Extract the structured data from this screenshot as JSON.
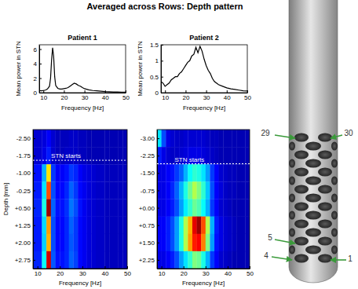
{
  "title": "Averaged across Rows: Depth pattern",
  "chart_data": [
    {
      "type": "line",
      "title": "Patient 1",
      "x_label": "Frequency [Hz]",
      "y_label": "Mean power in STN",
      "x": [
        8,
        9,
        10,
        11,
        12,
        13,
        13.5,
        14,
        14.5,
        15,
        15.5,
        16,
        17,
        18,
        19,
        20,
        21,
        22,
        23,
        24,
        25,
        26,
        27,
        28,
        29,
        30,
        32,
        34,
        36,
        38,
        40,
        42,
        44,
        46,
        48,
        50
      ],
      "series": [
        {
          "color": "#000000",
          "values": [
            0.3,
            0.25,
            0.3,
            0.35,
            0.5,
            0.9,
            2.0,
            4.5,
            6.2,
            5.0,
            2.2,
            1.0,
            0.6,
            0.5,
            0.5,
            0.55,
            0.6,
            0.7,
            0.9,
            1.1,
            1.3,
            1.2,
            1.0,
            0.9,
            0.7,
            0.55,
            0.4,
            0.3,
            0.25,
            0.2,
            0.15,
            0.12,
            0.1,
            0.1,
            0.08,
            0.08
          ]
        }
      ],
      "xlim": [
        8,
        50
      ],
      "xticks": [
        10,
        20,
        30,
        40,
        50
      ],
      "ylim": [
        0,
        6.6
      ],
      "yticks": [
        0,
        2,
        4,
        6
      ]
    },
    {
      "type": "line",
      "title": "Patient 2",
      "x_label": "Frequency [Hz]",
      "y_label": "Mean power in STN",
      "x": [
        8,
        9,
        10,
        11,
        12,
        13,
        14,
        15,
        16,
        17,
        18,
        19,
        20,
        21,
        22,
        23,
        24,
        25,
        26,
        27,
        28,
        29,
        30,
        31,
        32,
        33,
        34,
        35,
        36,
        38,
        40,
        42,
        44,
        46,
        48,
        50
      ],
      "series": [
        {
          "color": "#000000",
          "values": [
            0.35,
            0.3,
            0.2,
            0.25,
            0.3,
            0.4,
            0.45,
            0.5,
            0.5,
            0.6,
            0.65,
            0.75,
            0.85,
            0.95,
            1.0,
            1.15,
            1.2,
            1.42,
            1.25,
            1.45,
            1.3,
            1.05,
            0.85,
            0.7,
            0.6,
            0.45,
            0.35,
            0.3,
            0.25,
            0.2,
            0.15,
            0.12,
            0.1,
            0.08,
            0.06,
            0.05
          ]
        }
      ],
      "xlim": [
        8,
        50
      ],
      "xticks": [
        10,
        20,
        30,
        40,
        50
      ],
      "ylim": [
        0,
        1.5
      ],
      "yticks": [
        0,
        0.5,
        1,
        1.5
      ]
    },
    {
      "type": "heatmap",
      "x_label": "Frequency [Hz]",
      "y_label": "Depth [mm]",
      "x_bins": [
        8,
        10,
        12,
        14,
        16,
        18,
        20,
        22,
        24,
        26,
        28,
        30,
        32,
        34,
        36,
        38,
        40,
        42,
        44,
        46,
        48,
        50
      ],
      "y_bins": [
        -2.875,
        -2.125,
        -1.375,
        -0.625,
        0.125,
        0.875,
        1.625,
        2.375,
        3.125
      ],
      "z": [
        [
          0.08,
          0.08,
          0.09,
          0.12,
          0.08,
          0.06,
          0.06,
          0.06,
          0.07,
          0.07,
          0.06,
          0.06,
          0.05,
          0.05,
          0.05,
          0.05,
          0.05,
          0.05,
          0.05,
          0.05,
          0.05
        ],
        [
          0.08,
          0.08,
          0.1,
          0.15,
          0.08,
          0.06,
          0.06,
          0.07,
          0.07,
          0.07,
          0.06,
          0.06,
          0.05,
          0.05,
          0.05,
          0.05,
          0.05,
          0.05,
          0.05,
          0.05,
          0.05
        ],
        [
          0.14,
          0.14,
          0.3,
          0.65,
          0.18,
          0.12,
          0.12,
          0.14,
          0.18,
          0.16,
          0.12,
          0.1,
          0.09,
          0.08,
          0.07,
          0.07,
          0.06,
          0.06,
          0.06,
          0.06,
          0.06
        ],
        [
          0.15,
          0.15,
          0.35,
          0.8,
          0.2,
          0.13,
          0.13,
          0.16,
          0.22,
          0.18,
          0.13,
          0.11,
          0.09,
          0.08,
          0.07,
          0.07,
          0.06,
          0.06,
          0.06,
          0.06,
          0.06
        ],
        [
          0.16,
          0.16,
          0.4,
          0.97,
          0.22,
          0.14,
          0.14,
          0.17,
          0.24,
          0.2,
          0.14,
          0.11,
          0.09,
          0.08,
          0.07,
          0.07,
          0.06,
          0.06,
          0.06,
          0.06,
          0.06
        ],
        [
          0.15,
          0.15,
          0.34,
          0.72,
          0.2,
          0.13,
          0.13,
          0.16,
          0.22,
          0.18,
          0.13,
          0.11,
          0.09,
          0.08,
          0.07,
          0.07,
          0.06,
          0.06,
          0.06,
          0.06,
          0.06
        ],
        [
          0.15,
          0.15,
          0.33,
          0.7,
          0.2,
          0.13,
          0.13,
          0.16,
          0.21,
          0.18,
          0.13,
          0.11,
          0.09,
          0.08,
          0.07,
          0.07,
          0.06,
          0.06,
          0.06,
          0.06,
          0.06
        ],
        [
          0.16,
          0.16,
          0.38,
          0.92,
          0.21,
          0.14,
          0.14,
          0.16,
          0.22,
          0.19,
          0.13,
          0.11,
          0.09,
          0.08,
          0.07,
          0.07,
          0.06,
          0.06,
          0.06,
          0.06,
          0.06
        ]
      ],
      "color_range": [
        0,
        1
      ],
      "xlim": [
        8,
        50
      ],
      "xticks": [
        10,
        20,
        30,
        40,
        50
      ],
      "ylim": [
        -2.875,
        3.125
      ],
      "yticks": [
        {
          "value": -2.5,
          "label": "-2.50"
        },
        {
          "value": -1.75,
          "label": "-1.75"
        },
        {
          "value": -1.0,
          "label": "-1.00"
        },
        {
          "value": -0.25,
          "label": "-0.25"
        },
        {
          "value": 0.5,
          "label": "+0.50"
        },
        {
          "value": 1.25,
          "label": "+1.25"
        },
        {
          "value": 2.0,
          "label": "+2.00"
        },
        {
          "value": 2.75,
          "label": "+2.75"
        }
      ],
      "annotations": [
        {
          "text": "STN starts",
          "y": -1.55
        }
      ]
    },
    {
      "type": "heatmap",
      "x_label": "Frequency [Hz]",
      "x_bins": [
        8,
        10,
        12,
        14,
        16,
        18,
        20,
        22,
        24,
        26,
        28,
        30,
        32,
        34,
        36,
        38,
        40,
        42,
        44,
        46,
        48,
        50
      ],
      "y_bins": [
        -3.375,
        -2.625,
        -1.875,
        -1.125,
        -0.375,
        0.375,
        1.125,
        1.875,
        2.625
      ],
      "z": [
        [
          0.35,
          0.2,
          0.1,
          0.08,
          0.07,
          0.07,
          0.08,
          0.08,
          0.08,
          0.08,
          0.08,
          0.07,
          0.06,
          0.06,
          0.05,
          0.05,
          0.05,
          0.05,
          0.05,
          0.05,
          0.05
        ],
        [
          0.15,
          0.1,
          0.08,
          0.07,
          0.07,
          0.08,
          0.09,
          0.1,
          0.1,
          0.1,
          0.09,
          0.08,
          0.07,
          0.06,
          0.05,
          0.05,
          0.05,
          0.05,
          0.05,
          0.05,
          0.05
        ],
        [
          0.1,
          0.1,
          0.12,
          0.14,
          0.18,
          0.22,
          0.3,
          0.38,
          0.42,
          0.4,
          0.35,
          0.28,
          0.18,
          0.12,
          0.08,
          0.07,
          0.06,
          0.06,
          0.05,
          0.05,
          0.05
        ],
        [
          0.1,
          0.1,
          0.12,
          0.16,
          0.22,
          0.3,
          0.4,
          0.48,
          0.55,
          0.5,
          0.42,
          0.32,
          0.2,
          0.12,
          0.09,
          0.07,
          0.06,
          0.06,
          0.05,
          0.05,
          0.05
        ],
        [
          0.1,
          0.1,
          0.12,
          0.15,
          0.2,
          0.28,
          0.36,
          0.42,
          0.48,
          0.45,
          0.38,
          0.3,
          0.18,
          0.12,
          0.08,
          0.07,
          0.06,
          0.05,
          0.05,
          0.05,
          0.05
        ],
        [
          0.12,
          0.12,
          0.15,
          0.2,
          0.28,
          0.4,
          0.55,
          0.7,
          0.9,
          0.97,
          0.8,
          0.55,
          0.3,
          0.15,
          0.1,
          0.08,
          0.07,
          0.06,
          0.05,
          0.05,
          0.05
        ],
        [
          0.12,
          0.12,
          0.15,
          0.2,
          0.28,
          0.4,
          0.55,
          0.72,
          0.85,
          0.88,
          0.75,
          0.5,
          0.28,
          0.14,
          0.1,
          0.08,
          0.07,
          0.06,
          0.05,
          0.05,
          0.05
        ],
        [
          0.1,
          0.1,
          0.12,
          0.15,
          0.2,
          0.28,
          0.35,
          0.42,
          0.5,
          0.48,
          0.4,
          0.3,
          0.18,
          0.12,
          0.08,
          0.07,
          0.06,
          0.05,
          0.05,
          0.05,
          0.05
        ]
      ],
      "color_range": [
        0,
        1
      ],
      "xlim": [
        8,
        50
      ],
      "xticks": [
        10,
        20,
        30,
        40,
        50
      ],
      "ylim": [
        -3.375,
        2.625
      ],
      "yticks": [
        {
          "value": -3.0,
          "label": "-3.00"
        },
        {
          "value": -2.25,
          "label": "-2.25"
        },
        {
          "value": -1.5,
          "label": "-1.50"
        },
        {
          "value": -0.75,
          "label": "-0.75"
        },
        {
          "value": 0,
          "label": "+0.00"
        },
        {
          "value": 0.75,
          "label": "+0.75"
        },
        {
          "value": 1.5,
          "label": "+1.50"
        },
        {
          "value": 2.25,
          "label": "+2.25"
        }
      ],
      "annotations": [
        {
          "text": "STN starts",
          "y": -1.9
        }
      ]
    }
  ],
  "electrode": {
    "labels": [
      "29",
      "30",
      "5",
      "4",
      "1"
    ]
  }
}
